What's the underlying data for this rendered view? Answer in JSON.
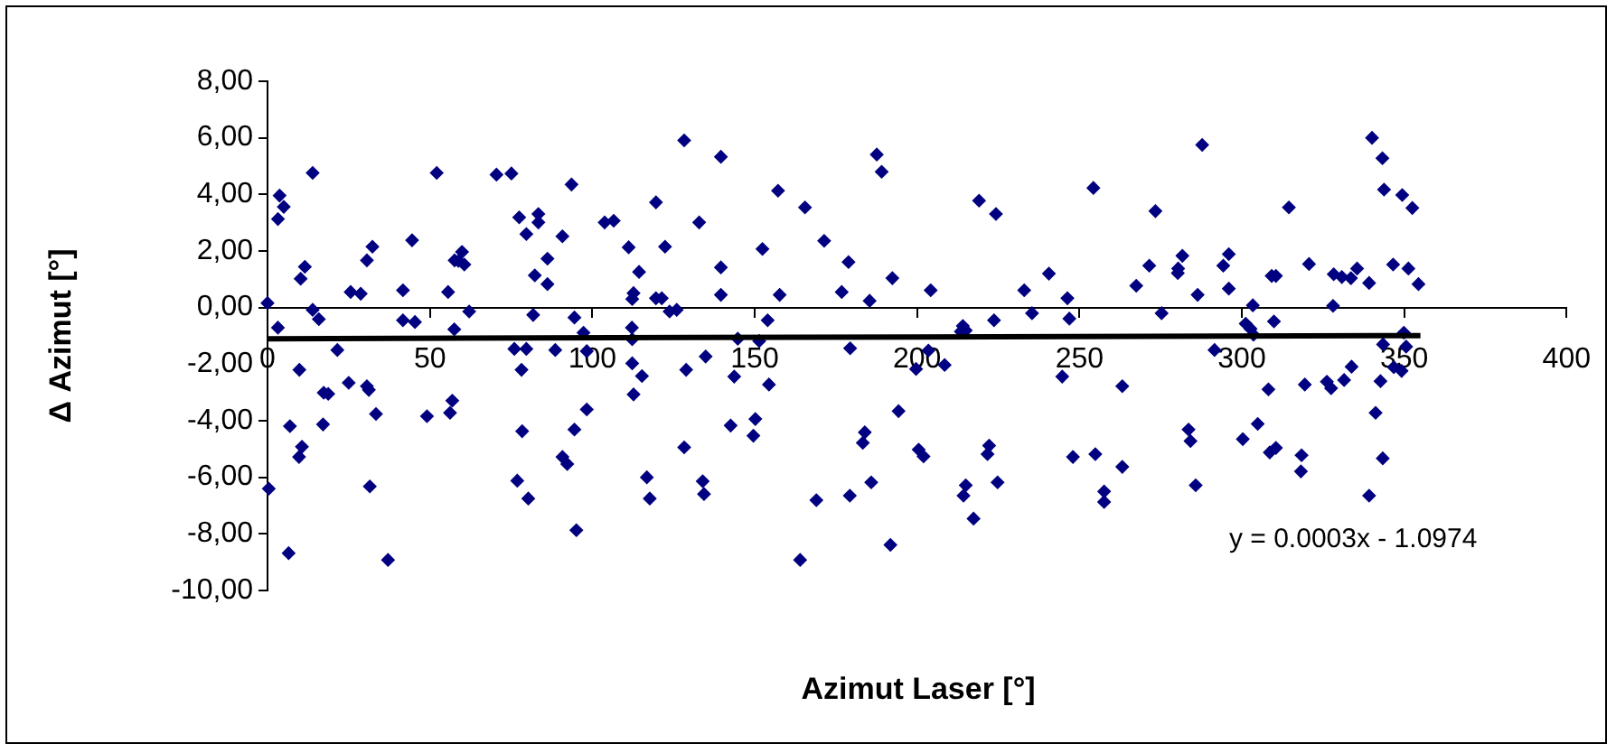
{
  "chart_data": {
    "type": "scatter",
    "xlabel": "Azimut Laser [°]",
    "ylabel": "Δ Azimut [°]",
    "annotations": [
      "y = 0.0003x - 1.0974"
    ],
    "xlim": [
      0,
      400
    ],
    "xticks": [
      0,
      50,
      100,
      150,
      200,
      250,
      300,
      350,
      400
    ],
    "ylim": [
      -10,
      8
    ],
    "yticks": [
      {
        "value": -10,
        "label": "-10,00"
      },
      {
        "value": -8,
        "label": "-8,00"
      },
      {
        "value": -6,
        "label": "-6,00"
      },
      {
        "value": -4,
        "label": "-4,00"
      },
      {
        "value": -2,
        "label": "-2,00"
      },
      {
        "value": 0,
        "label": "0,00"
      },
      {
        "value": 2,
        "label": "2,00"
      },
      {
        "value": 4,
        "label": "4,00"
      },
      {
        "value": 6,
        "label": "6,00"
      },
      {
        "value": 8,
        "label": "8,00"
      }
    ],
    "grid": false,
    "legend": false,
    "series": [
      {
        "type": "scatter",
        "color": "#000080",
        "marker": "diamond",
        "x": [
          0,
          3.2,
          3.7,
          5.0,
          3.2,
          13.9,
          11.5,
          10.2,
          13.9,
          15.8,
          0.4,
          6.9,
          9.8,
          10.6,
          9.7,
          6.5,
          21.5,
          17.3,
          18.7,
          17.1,
          25.0,
          30.6,
          31.2,
          33.4,
          31.5,
          37.1,
          25.6,
          28.7,
          30.6,
          32.3,
          41.7,
          44.5,
          41.7,
          45.4,
          52.1,
          49.1,
          55.6,
          57.5,
          57.6,
          59.9,
          60.6,
          58.8,
          62.1,
          56.9,
          56.2,
          70.5,
          75.1,
          77.5,
          83.4,
          83.4,
          79.7,
          90.8,
          93.6,
          86.2,
          82.3,
          86.2,
          81.8,
          94.5,
          97.3,
          76.0,
          79.7,
          88.6,
          98.3,
          78.2,
          78.4,
          94.5,
          98.3,
          90.8,
          92.3,
          76.9,
          80.3,
          95.1,
          103.8,
          106.6,
          111.2,
          114.4,
          112.7,
          112.3,
          112.2,
          112.3,
          112.3,
          115.3,
          112.7,
          119.6,
          122.4,
          119.6,
          121.4,
          123.8,
          126.0,
          128.3,
          132.9,
          128.9,
          134.9,
          128.3,
          116.8,
          117.7,
          134.0,
          134.4,
          139.6,
          139.6,
          139.6,
          143.7,
          142.6,
          150.2,
          149.6,
          152.4,
          144.8,
          151.4,
          154.0,
          154.4,
          157.2,
          157.7,
          164.0,
          165.5,
          169.0,
          171.4,
          178.9,
          176.8,
          179.4,
          179.3,
          183.9,
          183.3,
          185.9,
          185.4,
          187.6,
          189.1,
          192.4,
          194.3,
          191.8,
          200.5,
          202.0,
          204.2,
          203.5,
          199.7,
          208.5,
          219.1,
          224.3,
          214.1,
          215.0,
          213.5,
          223.7,
          222.2,
          221.7,
          224.8,
          215.0,
          214.3,
          217.4,
          233.0,
          235.4,
          240.6,
          246.3,
          246.9,
          244.7,
          248.0,
          254.9,
          257.6,
          257.6,
          263.2,
          263.2,
          254.3,
          267.5,
          271.5,
          273.4,
          275.3,
          287.8,
          314.5,
          280.4,
          281.7,
          280.3,
          286.4,
          294.3,
          296.0,
          296.0,
          291.6,
          283.6,
          284.2,
          285.8,
          303.4,
          301.2,
          302.7,
          303.6,
          309.9,
          309.2,
          310.5,
          308.2,
          304.9,
          300.3,
          308.6,
          310.5,
          318.4,
          318.2,
          319.4,
          320.7,
          328.3,
          330.8,
          333.6,
          335.5,
          339.2,
          328.1,
          326.2,
          327.5,
          331.5,
          333.8,
          340.1,
          343.3,
          343.8,
          341.2,
          339.2,
          343.4,
          342.7,
          349.4,
          352.5,
          346.6,
          351.3,
          354.4,
          349.9,
          350.6,
          346.8,
          349.2,
          343.5
        ],
        "values": [
          0.16,
          -0.71,
          3.96,
          3.56,
          3.13,
          4.76,
          1.44,
          1.02,
          -0.08,
          -0.41,
          -6.4,
          -4.19,
          -2.2,
          -4.92,
          -5.28,
          -8.68,
          -1.5,
          -3.01,
          -3.05,
          -4.13,
          -2.66,
          -2.78,
          -2.91,
          -3.76,
          -6.32,
          -8.92,
          0.55,
          0.49,
          1.67,
          2.15,
          0.61,
          2.38,
          -0.45,
          -0.51,
          4.76,
          -3.84,
          0.55,
          -0.77,
          1.67,
          1.97,
          1.52,
          1.65,
          -0.14,
          -3.29,
          -3.72,
          4.7,
          4.74,
          3.19,
          3.31,
          3.01,
          2.6,
          2.52,
          4.35,
          1.73,
          1.14,
          0.83,
          -0.26,
          -0.35,
          -0.89,
          -1.46,
          -1.46,
          -1.5,
          -1.54,
          -2.2,
          -4.37,
          -4.31,
          -3.6,
          -5.28,
          -5.53,
          -6.12,
          -6.75,
          -7.87,
          3.01,
          3.07,
          2.13,
          1.26,
          0.51,
          0.3,
          -0.71,
          -1.12,
          -1.97,
          -2.42,
          -3.07,
          3.72,
          2.15,
          0.33,
          0.33,
          -0.14,
          -0.08,
          5.91,
          3.01,
          -2.2,
          -1.73,
          -4.94,
          -6.0,
          -6.75,
          -6.14,
          -6.59,
          5.33,
          1.42,
          0.45,
          -2.44,
          -4.17,
          -3.94,
          -4.53,
          2.07,
          -1.1,
          -1.18,
          -0.45,
          -2.72,
          4.13,
          0.45,
          -8.92,
          3.54,
          -6.81,
          2.36,
          1.61,
          0.55,
          -1.44,
          -6.65,
          -4.41,
          -4.78,
          -6.18,
          0.24,
          5.41,
          4.8,
          1.04,
          -3.66,
          -8.39,
          -5.02,
          -5.26,
          0.61,
          -1.52,
          -2.17,
          -2.03,
          3.78,
          3.31,
          -0.65,
          -0.81,
          -0.85,
          -0.45,
          -4.88,
          -5.18,
          -6.18,
          -6.28,
          -6.65,
          -7.46,
          0.61,
          -0.2,
          1.2,
          0.33,
          -0.39,
          -2.44,
          -5.28,
          -5.18,
          -6.5,
          -6.87,
          -5.63,
          -2.78,
          4.23,
          0.77,
          1.48,
          3.41,
          -0.2,
          5.75,
          3.54,
          1.38,
          1.83,
          1.22,
          0.45,
          1.48,
          1.89,
          0.67,
          -1.5,
          -4.31,
          -4.72,
          -6.28,
          0.08,
          -0.57,
          -0.75,
          -0.96,
          -0.49,
          1.12,
          1.12,
          -2.89,
          -4.11,
          -4.65,
          -5.12,
          -4.96,
          -5.22,
          -5.79,
          -2.72,
          1.54,
          1.18,
          1.08,
          1.04,
          1.38,
          0.87,
          0.06,
          -2.62,
          -2.85,
          -2.56,
          -2.09,
          6.0,
          5.28,
          4.17,
          -3.72,
          -6.65,
          -5.33,
          -2.6,
          3.98,
          3.52,
          1.52,
          1.38,
          0.83,
          -0.89,
          -1.38,
          -2.11,
          -2.24,
          -1.3
        ]
      },
      {
        "type": "line",
        "color": "#000000",
        "marker": "none",
        "x": [
          0,
          355
        ],
        "values": [
          -1.1,
          -0.99
        ]
      }
    ]
  }
}
